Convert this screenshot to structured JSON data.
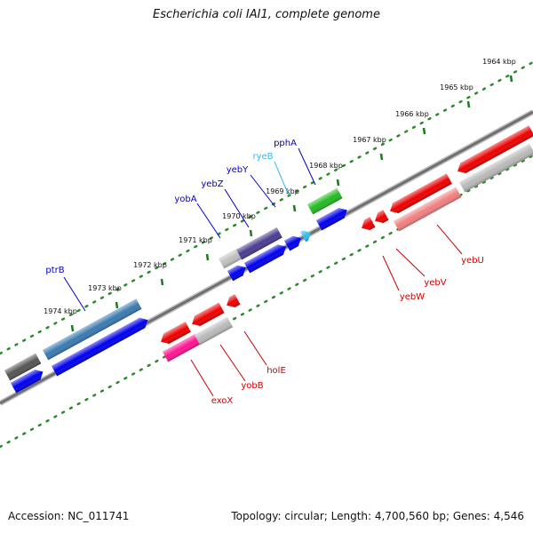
{
  "title": "Escherichia coli IAI1, complete genome",
  "footer": {
    "accession": "Accession: NC_011741",
    "summary": "Topology: circular; Length: 4,700,560 bp; Genes: 4,546"
  },
  "colors": {
    "forward_label": "#0000cc",
    "reverse_label": "#cc0000",
    "rna_label": "#33bbee",
    "backbone": "#707070",
    "ticks": "#2a8a2a"
  },
  "scale_ticks": [
    "1964 kbp",
    "1965 kbp",
    "1966 kbp",
    "1967 kbp",
    "1968 kbp",
    "1969 kbp",
    "1970 kbp",
    "1971 kbp",
    "1972 kbp",
    "1973 kbp",
    "1974 kbp"
  ],
  "forward_gene_labels": [
    "ptrB",
    "yobA",
    "yebZ",
    "yebY",
    "ryeB",
    "pphA"
  ],
  "reverse_gene_labels": [
    "exoX",
    "yobB",
    "holE",
    "yebW",
    "yebV",
    "yebU"
  ]
}
